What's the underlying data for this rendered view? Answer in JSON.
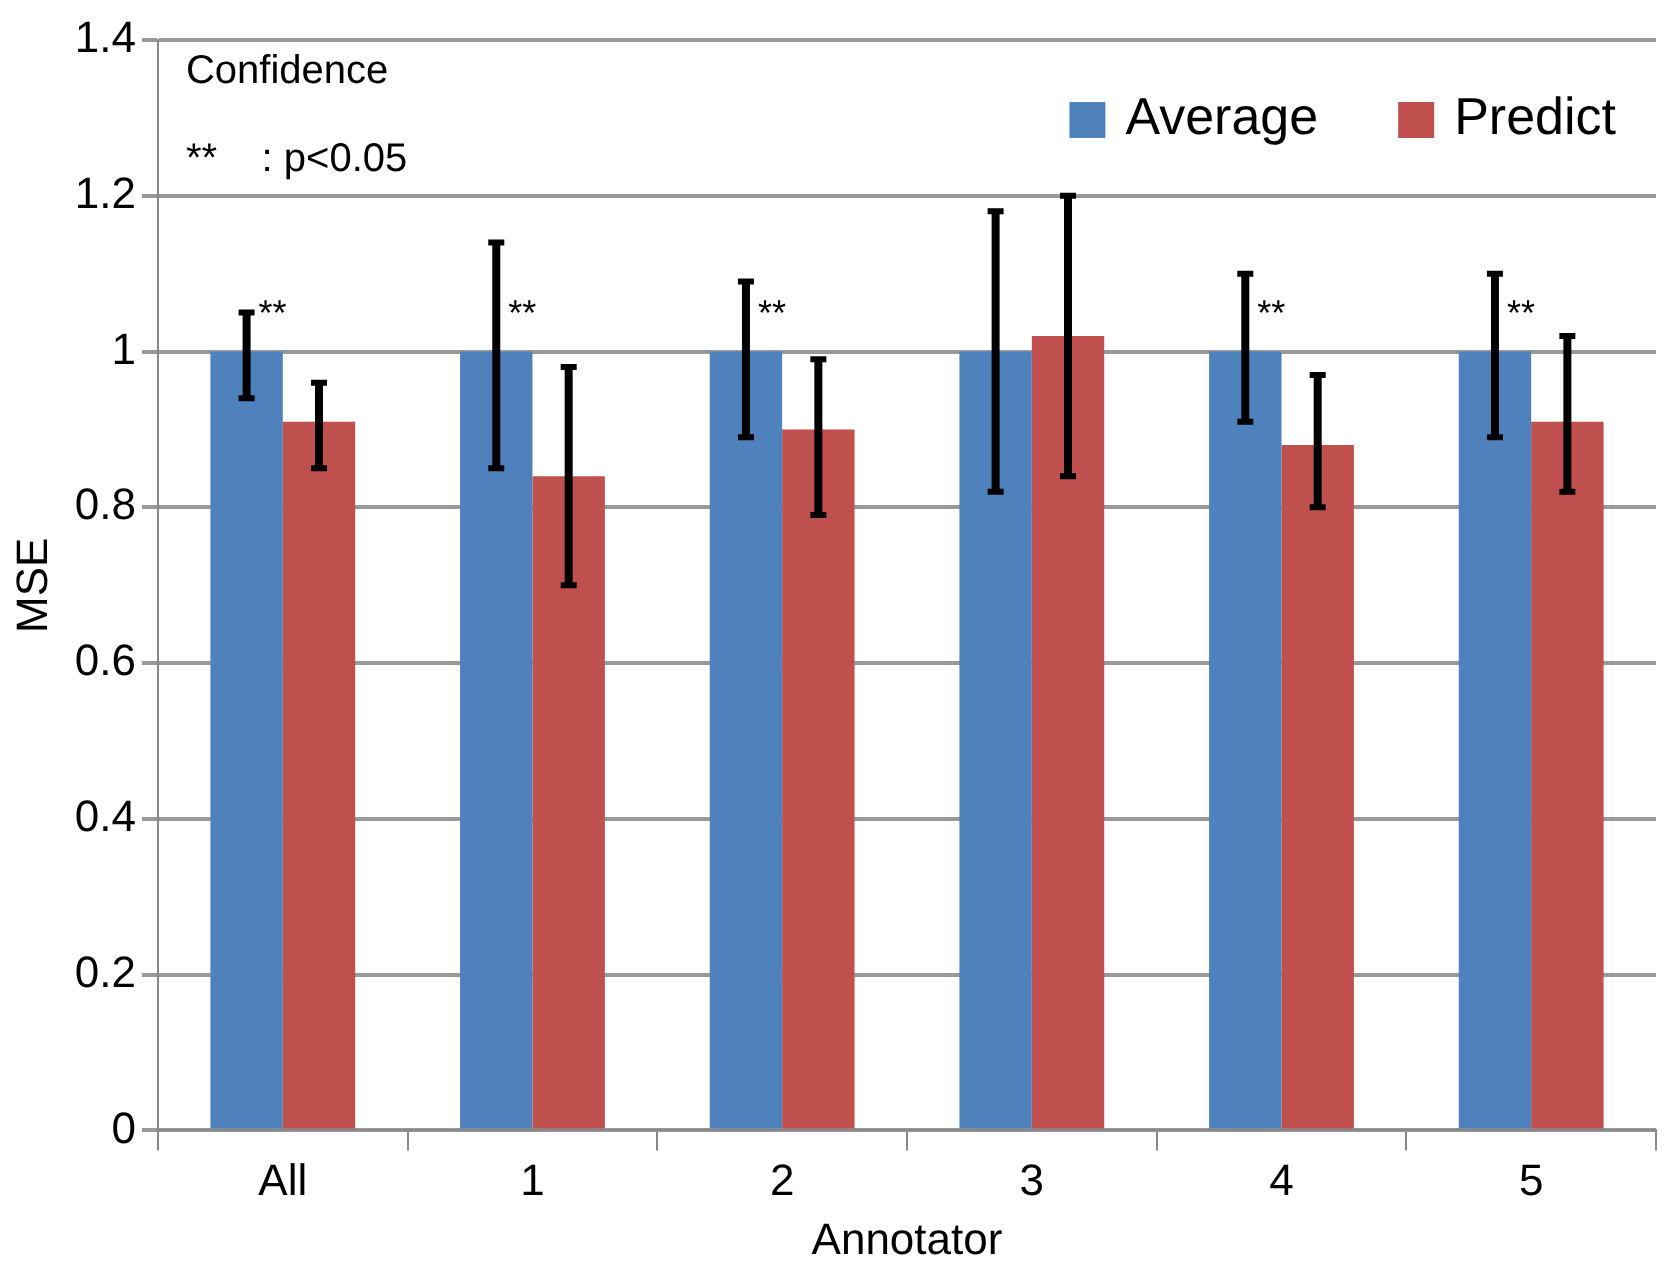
{
  "chart_data": {
    "type": "bar",
    "xlabel": "Annotator",
    "ylabel": "MSE",
    "categories": [
      "All",
      "1",
      "2",
      "3",
      "4",
      "5"
    ],
    "series": [
      {
        "name": "Average",
        "color": "#4f81bd",
        "values": [
          1,
          1,
          1,
          1,
          1,
          1
        ],
        "errors": [
          [
            0.94,
            1.05
          ],
          [
            0.85,
            1.14
          ],
          [
            0.89,
            1.09
          ],
          [
            0.82,
            1.18
          ],
          [
            0.91,
            1.1
          ],
          [
            0.89,
            1.1
          ]
        ],
        "value_labels": [
          "**",
          "**",
          "**",
          null,
          "**",
          "**"
        ]
      },
      {
        "name": "Predict",
        "color": "#c0504d",
        "values": [
          0.91,
          0.84,
          0.9,
          1.02,
          0.88,
          0.91
        ],
        "errors": [
          [
            0.85,
            0.96
          ],
          [
            0.7,
            0.98
          ],
          [
            0.79,
            0.99
          ],
          [
            0.84,
            1.2
          ],
          [
            0.8,
            0.97
          ],
          [
            0.82,
            1.02
          ]
        ]
      }
    ],
    "ylim": [
      0,
      1.4
    ],
    "yticks": [
      0,
      0.2,
      0.4,
      0.6,
      0.8,
      1,
      1.2,
      1.4
    ],
    "grid": "y",
    "legend": "top right",
    "annotations": [
      "Confidence",
      "**    : p<0.05"
    ]
  }
}
